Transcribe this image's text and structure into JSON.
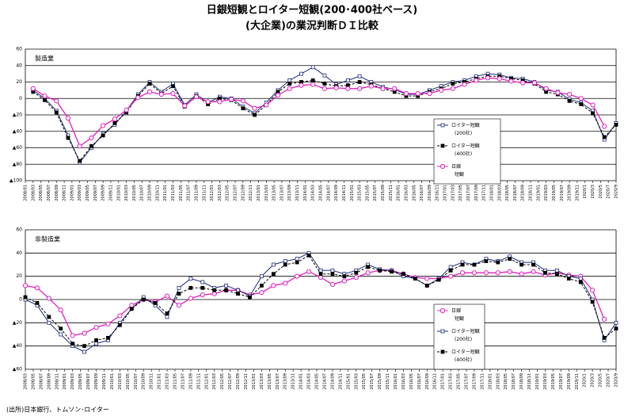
{
  "title": "日銀短観とロイター短観(200･400社ベース)",
  "subtitle": "(大企業)の業況判断ＤＩ比較",
  "source": "(出所)日本銀行、トムソン･ロイター",
  "chart_data": [
    {
      "type": "line",
      "label": "製造業",
      "legend": "right",
      "xlim": [
        "2008/01",
        "2020/9"
      ],
      "x": [
        "2008/03",
        "2008/06",
        "2008/09",
        "2008/12",
        "2009/03",
        "2009/06",
        "2009/09",
        "2009/12",
        "2010/03",
        "2010/06",
        "2010/09",
        "2010/12",
        "2011/03",
        "2011/06",
        "2011/09",
        "2011/12",
        "2012/03",
        "2012/06",
        "2012/09",
        "2012/12",
        "2013/03",
        "2013/06",
        "2013/09",
        "2013/12",
        "2014/03",
        "2014/06",
        "2014/09",
        "2014/12",
        "2015/03",
        "2015/06",
        "2015/09",
        "2015/12",
        "2016/03",
        "2016/06",
        "2016/09",
        "2016/12",
        "2017/03",
        "2017/06",
        "2017/09",
        "2017/12",
        "2018/03",
        "2018/06",
        "2018/09",
        "2018/12",
        "2019/03",
        "2019/06",
        "2019/09",
        "2019/12",
        "2020/3",
        "2020/6",
        "2020/9"
      ],
      "ylim": [
        -100,
        60
      ],
      "yticks": [
        {
          "value": -100,
          "label": "▲100"
        },
        {
          "value": -80,
          "label": "▲80"
        },
        {
          "value": -60,
          "label": "▲60"
        },
        {
          "value": -40,
          "label": "▲40"
        },
        {
          "value": -20,
          "label": "▲20"
        },
        0,
        20,
        40,
        60
      ],
      "xticks": [
        "2008/01",
        "2008/03",
        "2008/05",
        "2008/07",
        "2008/09",
        "2008/11",
        "2009/01",
        "2009/03",
        "2009/05",
        "2009/07",
        "2009/09",
        "2009/11",
        "2010/01",
        "2010/03",
        "2010/05",
        "2010/07",
        "2010/09",
        "2010/11",
        "2011/01",
        "2011/03",
        "2011/05",
        "2011/07",
        "2011/09",
        "2011/11",
        "2012/01",
        "2012/03",
        "2012/05",
        "2012/07",
        "2012/09",
        "2012/11",
        "2013/01",
        "2013/03",
        "2013/05",
        "2013/07",
        "2013/09",
        "2013/11",
        "2014/01",
        "2014/03",
        "2014/05",
        "2014/07",
        "2014/09",
        "2014/11",
        "2015/01",
        "2015/03",
        "2015/05",
        "2015/07",
        "2015/09",
        "2015/11",
        "2016/01",
        "2016/03",
        "2016/05",
        "2016/07",
        "2016/09",
        "2016/11",
        "2017/01",
        "2017/03",
        "2017/05",
        "2017/07",
        "2017/09",
        "2017/11",
        "2018/01",
        "2018/03",
        "2018/05",
        "2018/07",
        "2018/09",
        "2018/11",
        "2019/01",
        "2019/03",
        "2019/05",
        "2019/07",
        "2019/09",
        "2019/11",
        "2020/1",
        "2020/3",
        "2020/5",
        "2020/7",
        "2020/9"
      ],
      "series": [
        {
          "name": "ロイター短観\n(200社)",
          "color": "#1f2d7a",
          "marker": "open-square",
          "values": [
            10,
            0,
            -15,
            -45,
            -78,
            -60,
            -43,
            -32,
            -15,
            5,
            20,
            8,
            18,
            -8,
            5,
            -5,
            2,
            0,
            -10,
            -18,
            -5,
            10,
            22,
            30,
            38,
            28,
            17,
            22,
            27,
            20,
            14,
            11,
            5,
            5,
            10,
            15,
            20,
            22,
            27,
            30,
            29,
            25,
            24,
            20,
            10,
            8,
            -1,
            -5,
            -15,
            -50,
            -30
          ]
        },
        {
          "name": "ロイター短観\n(400社)",
          "color": "#000000",
          "marker": "filled-square",
          "dashed": true,
          "values": [
            8,
            -2,
            -17,
            -48,
            -76,
            -58,
            -45,
            -30,
            -17,
            3,
            18,
            6,
            15,
            -10,
            3,
            -7,
            0,
            -2,
            -12,
            -20,
            -8,
            8,
            18,
            20,
            22,
            18,
            15,
            16,
            20,
            17,
            12,
            8,
            3,
            3,
            8,
            12,
            18,
            20,
            24,
            27,
            27,
            24,
            22,
            18,
            8,
            5,
            -3,
            -7,
            -18,
            -47,
            -32
          ]
        },
        {
          "name": "日銀\n短観",
          "color": "#e020c0",
          "marker": "open-circle",
          "values": [
            12,
            3,
            -3,
            -24,
            -58,
            -48,
            -33,
            -25,
            -14,
            1,
            8,
            5,
            6,
            -9,
            2,
            -4,
            -4,
            -1,
            -3,
            -12,
            -8,
            4,
            12,
            16,
            17,
            12,
            13,
            12,
            12,
            15,
            12,
            12,
            6,
            6,
            6,
            10,
            12,
            17,
            22,
            25,
            24,
            21,
            19,
            19,
            12,
            7,
            5,
            0,
            -8,
            -34,
            null
          ]
        }
      ]
    },
    {
      "type": "line",
      "label": "非製造業",
      "legend": "right",
      "xlim": [
        "2008/03",
        "2020/9"
      ],
      "x": [
        "2008/03",
        "2008/06",
        "2008/09",
        "2008/12",
        "2009/03",
        "2009/06",
        "2009/09",
        "2009/12",
        "2010/03",
        "2010/06",
        "2010/09",
        "2010/12",
        "2011/03",
        "2011/06",
        "2011/09",
        "2011/12",
        "2012/03",
        "2012/06",
        "2012/09",
        "2012/12",
        "2013/03",
        "2013/06",
        "2013/09",
        "2013/12",
        "2014/03",
        "2014/06",
        "2014/09",
        "2014/12",
        "2015/03",
        "2015/06",
        "2015/09",
        "2015/12",
        "2016/03",
        "2016/06",
        "2016/09",
        "2016/12",
        "2017/03",
        "2017/06",
        "2017/09",
        "2017/12",
        "2018/03",
        "2018/06",
        "2018/09",
        "2018/12",
        "2019/03",
        "2019/06",
        "2019/09",
        "2019/12",
        "2020/3",
        "2020/6",
        "2020/9"
      ],
      "ylim": [
        -60,
        60
      ],
      "yticks": [
        {
          "value": -60,
          "label": "▲60"
        },
        {
          "value": -40,
          "label": "▲40"
        },
        {
          "value": -20,
          "label": "▲20"
        },
        0,
        20,
        40,
        60
      ],
      "xticks": [
        "2008/03",
        "2008/05",
        "2008/07",
        "2008/09",
        "2008/11",
        "2009/01",
        "2009/03",
        "2009/05",
        "2009/07",
        "2009/09",
        "2009/11",
        "2010/01",
        "2010/03",
        "2010/05",
        "2010/07",
        "2010/09",
        "2010/11",
        "2011/01",
        "2011/03",
        "2011/05",
        "2011/07",
        "2011/09",
        "2011/11",
        "2012/01",
        "2012/03",
        "2012/05",
        "2012/07",
        "2012/09",
        "2012/11",
        "2013/01",
        "2013/03",
        "2013/05",
        "2013/07",
        "2013/09",
        "2013/11",
        "2014/01",
        "2014/03",
        "2014/05",
        "2014/07",
        "2014/09",
        "2014/11",
        "2015/01",
        "2015/03",
        "2015/05",
        "2015/07",
        "2015/09",
        "2015/11",
        "2016/01",
        "2016/03",
        "2016/05",
        "2016/07",
        "2016/09",
        "2016/11",
        "2017/01",
        "2017/03",
        "2017/05",
        "2017/07",
        "2017/09",
        "2017/11",
        "2018/01",
        "2018/03",
        "2018/05",
        "2018/07",
        "2018/09",
        "2018/11",
        "2019/01",
        "2019/03",
        "2019/05",
        "2019/07",
        "2019/09",
        "2019/11",
        "2020/1",
        "2020/3",
        "2020/5",
        "2020/7",
        "2020/9"
      ],
      "series": [
        {
          "name": "日銀\n短観",
          "color": "#e020c0",
          "marker": "open-circle",
          "values": [
            12,
            10,
            1,
            -9,
            -31,
            -29,
            -24,
            -21,
            -14,
            -5,
            0,
            -2,
            3,
            -5,
            1,
            4,
            5,
            8,
            8,
            4,
            6,
            12,
            14,
            20,
            24,
            19,
            13,
            16,
            19,
            23,
            25,
            25,
            22,
            19,
            18,
            18,
            20,
            23,
            23,
            23,
            23,
            24,
            22,
            24,
            21,
            23,
            21,
            20,
            8,
            -17,
            null
          ]
        },
        {
          "name": "ロイター短観\n(200社)",
          "color": "#1f2d7a",
          "marker": "open-square",
          "values": [
            0,
            -5,
            -20,
            -30,
            -40,
            -45,
            -38,
            -35,
            -20,
            -8,
            2,
            -5,
            -15,
            10,
            18,
            15,
            10,
            12,
            8,
            3,
            20,
            30,
            33,
            35,
            40,
            25,
            25,
            22,
            25,
            30,
            26,
            25,
            20,
            18,
            12,
            18,
            28,
            32,
            30,
            35,
            33,
            37,
            32,
            32,
            25,
            25,
            20,
            18,
            0,
            -35,
            -20
          ]
        },
        {
          "name": "ロイター短観\n(400社)",
          "color": "#000000",
          "marker": "filled-square",
          "dashed": true,
          "values": [
            2,
            -3,
            -15,
            -25,
            -38,
            -40,
            -35,
            -33,
            -22,
            -8,
            0,
            -3,
            -12,
            5,
            10,
            10,
            8,
            8,
            5,
            2,
            12,
            22,
            30,
            32,
            38,
            22,
            22,
            20,
            23,
            28,
            25,
            24,
            22,
            18,
            12,
            17,
            25,
            30,
            30,
            33,
            32,
            35,
            30,
            30,
            23,
            22,
            18,
            15,
            -2,
            -33,
            -25
          ]
        }
      ]
    }
  ]
}
